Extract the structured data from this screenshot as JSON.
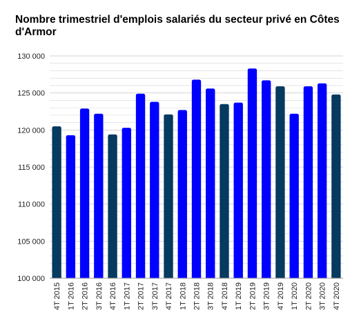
{
  "chart_data": {
    "type": "bar",
    "title": "Nombre trimestriel d'emplois salariés du secteur privé en Côtes d'Armor",
    "xlabel": "",
    "ylabel": "",
    "ylim": [
      100000,
      130000
    ],
    "y_major_step": 5000,
    "y_minor_step": 1000,
    "grid": true,
    "y_tick_labels": [
      "100 000",
      "105 000",
      "110 000",
      "115 000",
      "120 000",
      "125 000",
      "130 000"
    ],
    "categories": [
      "4T 2015",
      "1T 2016",
      "2T 2016",
      "3T 2016",
      "4T 2016",
      "1T 2017",
      "2T 2017",
      "3T 2017",
      "4T 2017",
      "1T 2018",
      "2T 2018",
      "3T 2018",
      "4T 2018",
      "1T 2019",
      "2T 2019",
      "3T 2019",
      "4T 2019",
      "1T 2020",
      "2T 2020",
      "3T 2020",
      "4T 2020"
    ],
    "values": [
      120500,
      119300,
      122900,
      122200,
      119400,
      120300,
      124900,
      123800,
      122100,
      122700,
      126800,
      125600,
      123500,
      123700,
      128300,
      126700,
      125900,
      122200,
      125900,
      126300,
      124800
    ],
    "colors": {
      "fourth_quarter": "#063a5f",
      "other_quarters": "#0000ff",
      "gridline": "#d3d3d3",
      "axis": "#9a9a9a"
    }
  }
}
